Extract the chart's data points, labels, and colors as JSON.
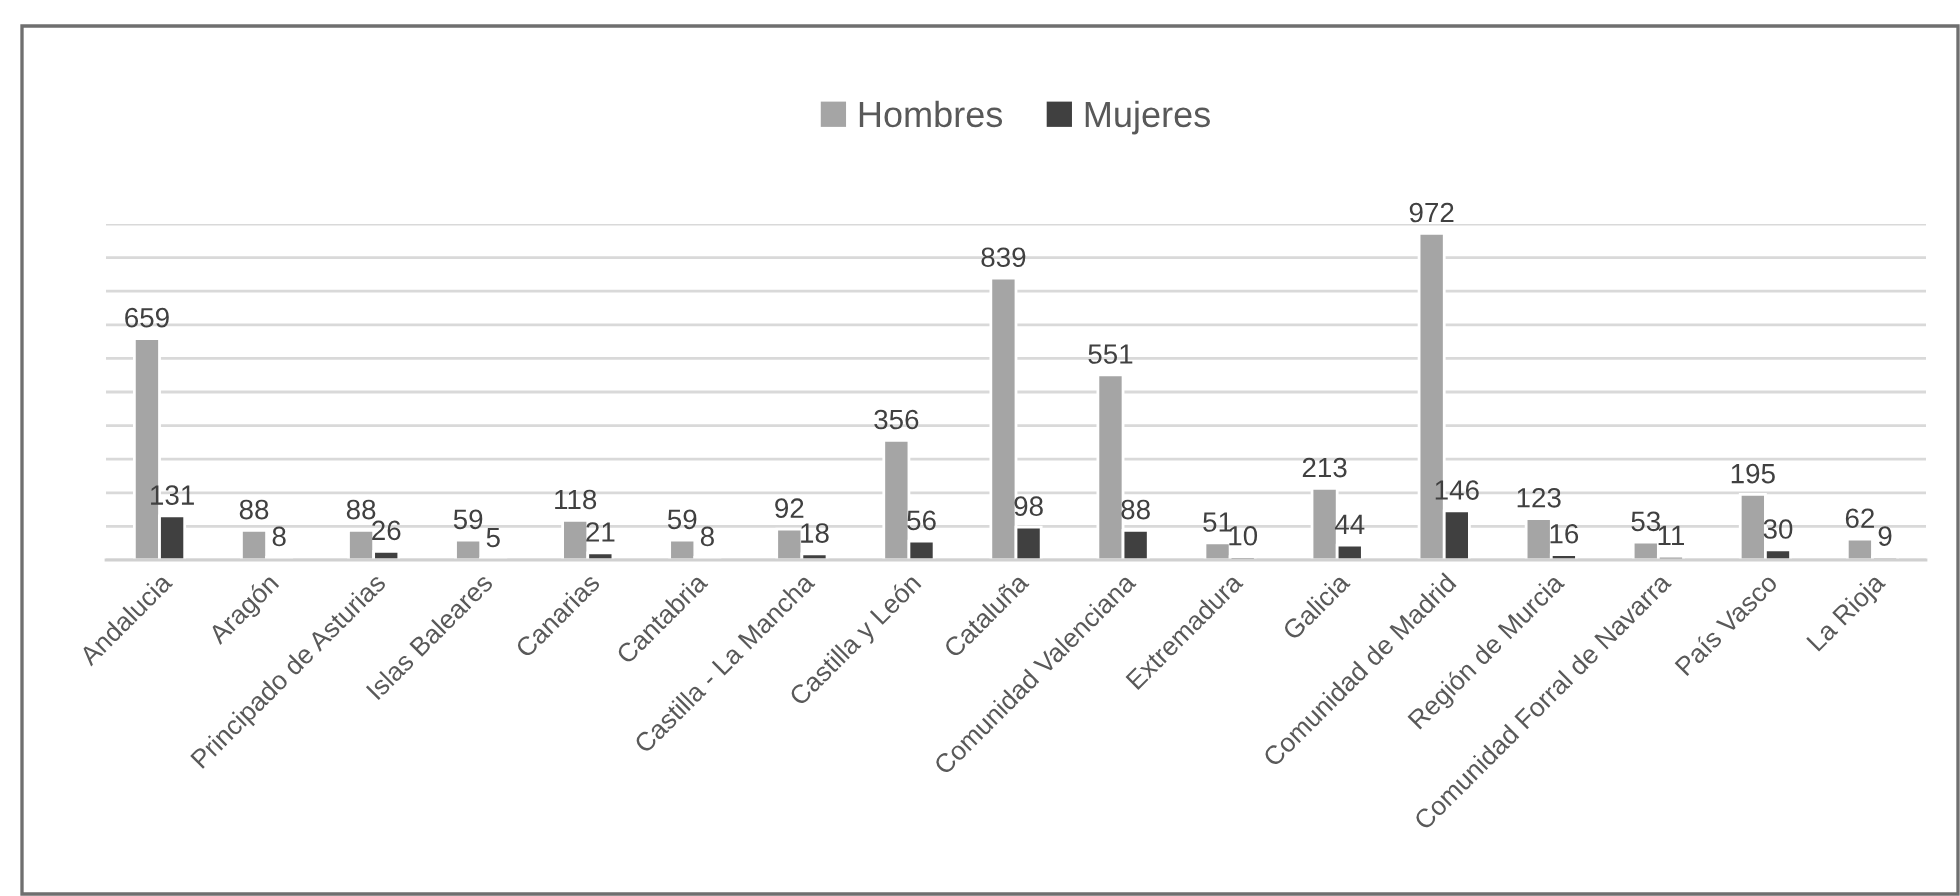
{
  "chart_data": {
    "type": "bar",
    "categories": [
      "Andalucia",
      "Aragón",
      "Principado de Asturias",
      "Islas Baleares",
      "Canarias",
      "Cantabria",
      "Castilla - La Mancha",
      "Castilla y León",
      "Cataluña",
      "Comunidad Valenciana",
      "Extremadura",
      "Galicia",
      "Comunidad de Madrid",
      "Región de Murcia",
      "Comunidad Forral de Navarra",
      "País Vasco",
      "La Rioja"
    ],
    "series": [
      {
        "name": "Hombres",
        "color": "#a5a5a5",
        "values": [
          659,
          88,
          88,
          59,
          118,
          59,
          92,
          356,
          839,
          551,
          51,
          213,
          972,
          123,
          53,
          195,
          62
        ]
      },
      {
        "name": "Mujeres",
        "color": "#404040",
        "values": [
          131,
          8,
          26,
          5,
          21,
          8,
          18,
          56,
          98,
          88,
          10,
          44,
          146,
          16,
          11,
          30,
          9
        ]
      }
    ],
    "ylim": [
      0,
      1000
    ],
    "yticks": [
      {
        "value": 0,
        "label": null
      },
      {
        "value": 100,
        "label": null
      },
      {
        "value": 200,
        "label": null
      },
      {
        "value": 300,
        "label": null
      },
      {
        "value": 400,
        "label": null
      },
      {
        "value": 500,
        "label": null
      },
      {
        "value": 600,
        "label": null
      },
      {
        "value": 700,
        "label": null
      },
      {
        "value": 800,
        "label": null
      },
      {
        "value": 900,
        "label": null
      },
      {
        "value": 1000,
        "label": null
      }
    ],
    "tick_labels": "x",
    "grid": "y",
    "legend": "top",
    "data_labels": true
  }
}
